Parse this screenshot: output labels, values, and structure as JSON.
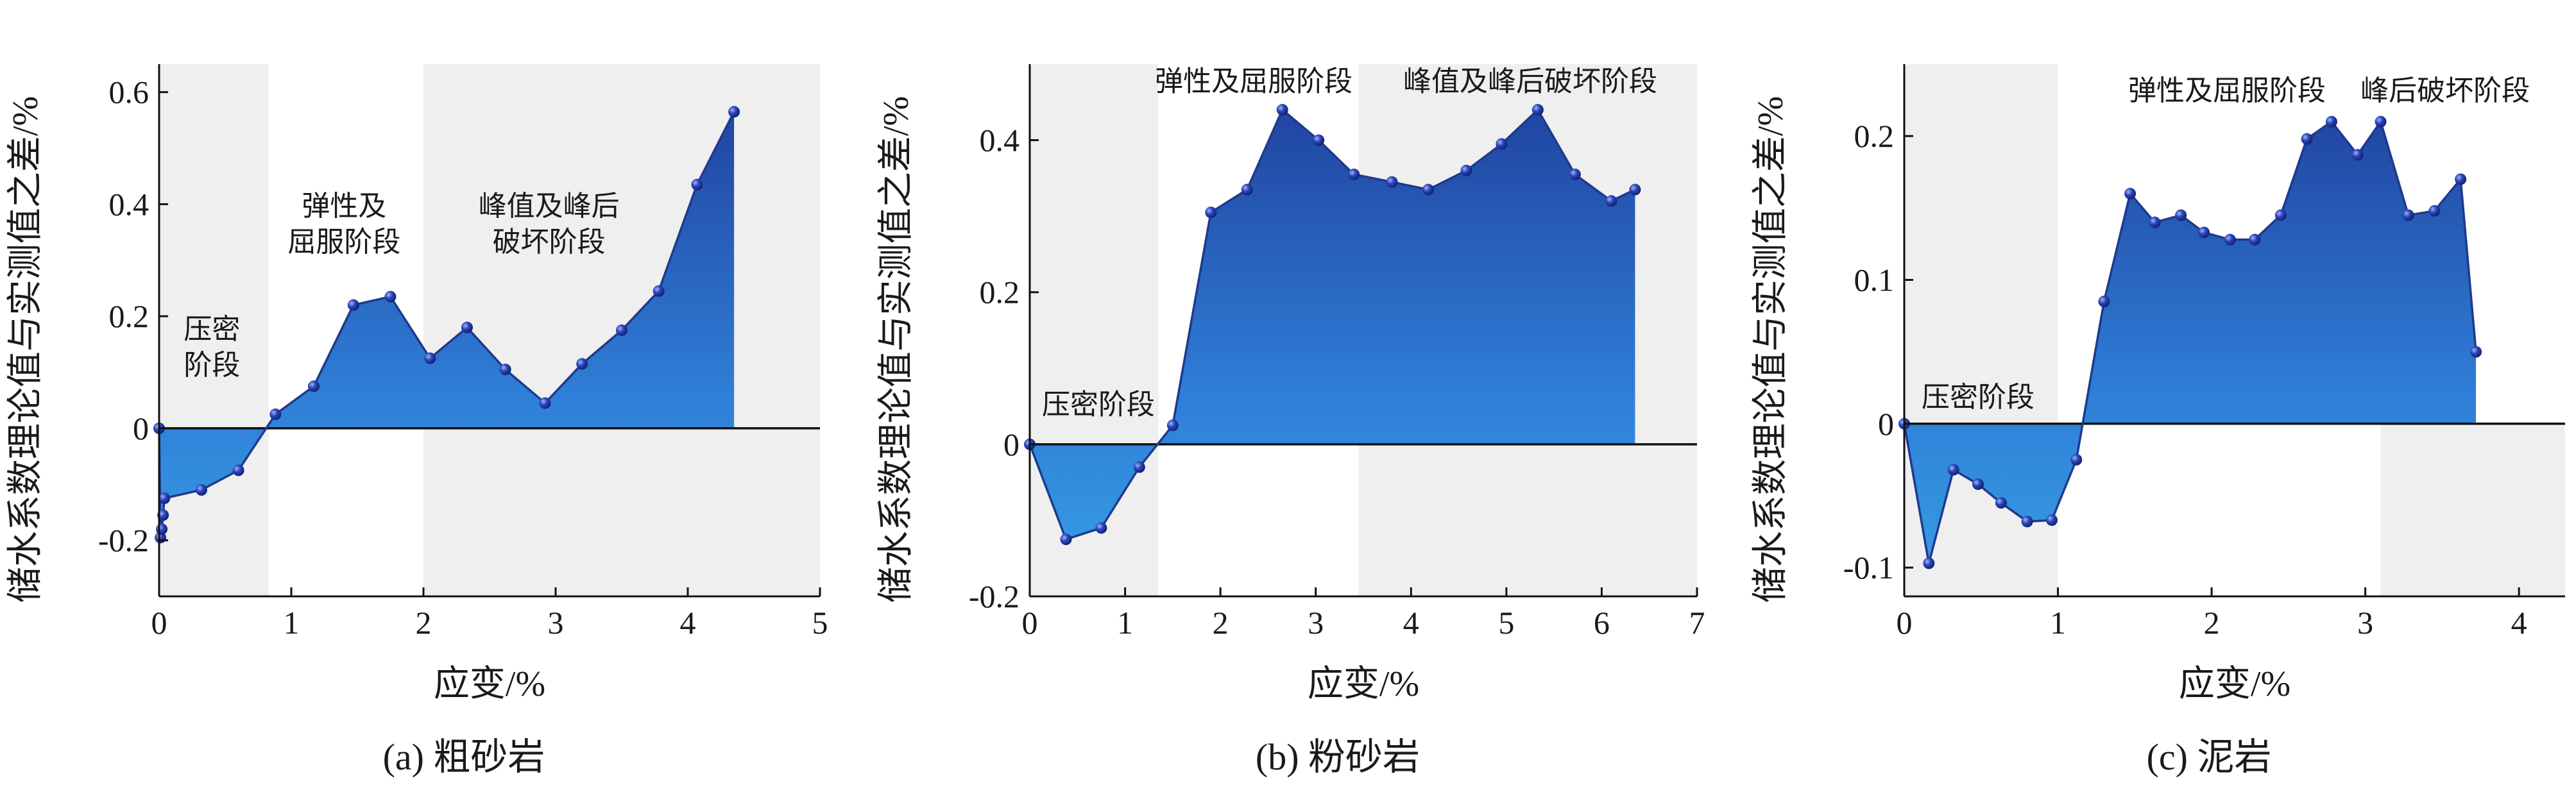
{
  "figure": {
    "ylabel": "储水系数理论值与实测值之差/%",
    "xlabel": "应变/%"
  },
  "chart_data": [
    {
      "type": "area",
      "caption": "(a) 粗砂岩",
      "xlabel": "应变/%",
      "ylabel": "储水系数理论值与实测值之差/%",
      "xlim": [
        0,
        5
      ],
      "ylim": [
        -0.3,
        0.65
      ],
      "xticks": [
        0,
        1,
        2,
        3,
        4,
        5
      ],
      "yticks": [
        -0.2,
        0,
        0.2,
        0.4,
        0.6
      ],
      "ytick_labels": [
        "-0.2",
        "0",
        "0.2",
        "0.4",
        "0.6"
      ],
      "stages": [
        {
          "x0": 0,
          "x1": 0.83,
          "shaded": true
        },
        {
          "x0": 2.0,
          "x1": 5.0,
          "shaded": true
        }
      ],
      "stage_labels": [
        {
          "lines": [
            "压密",
            "阶段"
          ],
          "x": 0.4,
          "y": 0.16
        },
        {
          "lines": [
            "弹性及",
            "屈服阶段"
          ],
          "x": 1.4,
          "y": 0.38
        },
        {
          "lines": [
            "峰值及峰后",
            "破坏阶段"
          ],
          "x": 2.95,
          "y": 0.38
        }
      ],
      "x": [
        0,
        0.01,
        0.02,
        0.03,
        0.04,
        0.32,
        0.6,
        0.88,
        1.17,
        1.47,
        1.75,
        2.05,
        2.33,
        2.62,
        2.92,
        3.2,
        3.5,
        3.78,
        4.07,
        4.35
      ],
      "y": [
        0,
        -0.195,
        -0.18,
        -0.155,
        -0.125,
        -0.11,
        -0.075,
        0.025,
        0.075,
        0.22,
        0.235,
        0.125,
        0.18,
        0.105,
        0.045,
        0.115,
        0.175,
        0.245,
        0.435,
        0.565
      ]
    },
    {
      "type": "area",
      "caption": "(b) 粉砂岩",
      "xlabel": "应变/%",
      "ylabel": "储水系数理论值与实测值之差/%",
      "xlim": [
        0,
        7
      ],
      "ylim": [
        -0.2,
        0.5
      ],
      "xticks": [
        0,
        1,
        2,
        3,
        4,
        5,
        6,
        7
      ],
      "yticks": [
        -0.2,
        0,
        0.2,
        0.4
      ],
      "ytick_labels": [
        "-0.2",
        "0",
        "0.2",
        "0.4"
      ],
      "stages": [
        {
          "x0": 0,
          "x1": 1.35,
          "shaded": true
        },
        {
          "x0": 3.45,
          "x1": 7.0,
          "shaded": true
        }
      ],
      "stage_labels": [
        {
          "lines": [
            "压密阶段"
          ],
          "x": 0.72,
          "y": 0.04
        },
        {
          "lines": [
            "弹性及屈服阶段"
          ],
          "x": 2.35,
          "y": 0.465
        },
        {
          "lines": [
            "峰值及峰后破坏阶段"
          ],
          "x": 5.25,
          "y": 0.465
        }
      ],
      "x": [
        0,
        0.38,
        0.75,
        1.15,
        1.5,
        1.9,
        2.28,
        2.65,
        3.03,
        3.4,
        3.8,
        4.18,
        4.58,
        4.95,
        5.33,
        5.72,
        6.1,
        6.35
      ],
      "y": [
        0,
        -0.125,
        -0.11,
        -0.03,
        0.025,
        0.305,
        0.335,
        0.44,
        0.4,
        0.355,
        0.345,
        0.335,
        0.36,
        0.395,
        0.44,
        0.355,
        0.32,
        0.335
      ]
    },
    {
      "type": "area",
      "caption": "(c) 泥岩",
      "xlabel": "应变/%",
      "ylabel": "储水系数理论值与实测值之差/%",
      "xlim": [
        0,
        4.3
      ],
      "ylim": [
        -0.12,
        0.25
      ],
      "xticks": [
        0,
        1,
        2,
        3,
        4
      ],
      "yticks": [
        -0.1,
        0,
        0.1,
        0.2
      ],
      "ytick_labels": [
        "-0.1",
        "0",
        "0.1",
        "0.2"
      ],
      "stages": [
        {
          "x0": 0,
          "x1": 1.0,
          "shaded": true
        },
        {
          "x0": 3.1,
          "x1": 4.3,
          "shaded": true,
          "below_zero_only": true
        }
      ],
      "stage_labels": [
        {
          "lines": [
            "压密阶段"
          ],
          "x": 0.48,
          "y": 0.012
        },
        {
          "lines": [
            "弹性及屈服阶段"
          ],
          "x": 2.1,
          "y": 0.225
        },
        {
          "lines": [
            "峰后破坏阶段"
          ],
          "x": 3.52,
          "y": 0.225
        }
      ],
      "x": [
        0,
        0.16,
        0.32,
        0.48,
        0.63,
        0.8,
        0.96,
        1.12,
        1.3,
        1.47,
        1.63,
        1.8,
        1.95,
        2.12,
        2.28,
        2.45,
        2.62,
        2.78,
        2.95,
        3.1,
        3.28,
        3.45,
        3.62,
        3.72
      ],
      "y": [
        0,
        -0.097,
        -0.032,
        -0.042,
        -0.055,
        -0.068,
        -0.067,
        -0.025,
        0.085,
        0.16,
        0.14,
        0.145,
        0.133,
        0.128,
        0.128,
        0.145,
        0.198,
        0.21,
        0.187,
        0.21,
        0.145,
        0.148,
        0.17,
        0.05
      ]
    }
  ]
}
